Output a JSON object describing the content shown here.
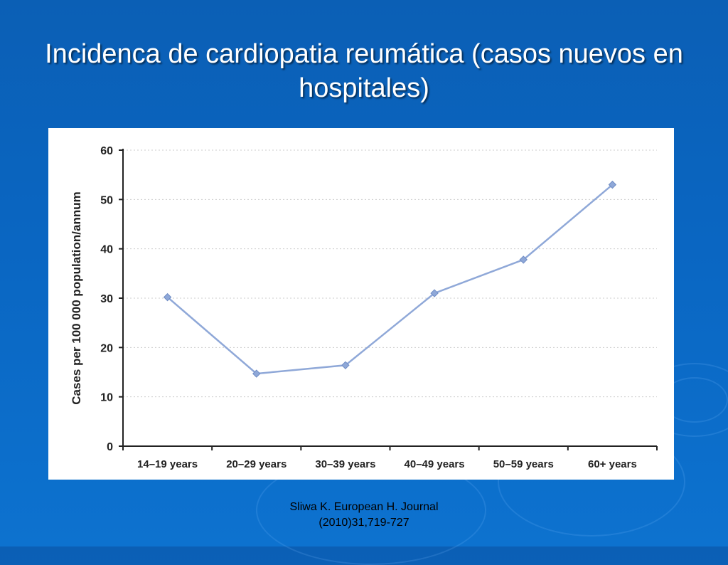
{
  "slide": {
    "title": "Incidenca de cardiopatia reumática (casos nuevos en hospitales)",
    "citation_line1": "Sliwa K. European H. Journal",
    "citation_line2": "(2010)31,719-727"
  },
  "chart_data": {
    "type": "line",
    "title": "",
    "xlabel": "",
    "ylabel": "Cases per 100 000 population/annum",
    "categories": [
      "14–19 years",
      "20–29 years",
      "30–39 years",
      "40–49 years",
      "50–59 years",
      "60+ years"
    ],
    "series": [
      {
        "values": [
          30.2,
          14.7,
          16.4,
          31.0,
          37.8,
          53.0
        ]
      }
    ],
    "ylim": [
      0,
      60
    ],
    "yticks": [
      0,
      10,
      20,
      30,
      40,
      50,
      60
    ],
    "grid": true,
    "colors": {
      "line": "#8fa8d8",
      "marker": "#8fa8d8",
      "axis": "#222222",
      "grid": "#cccccc"
    }
  }
}
